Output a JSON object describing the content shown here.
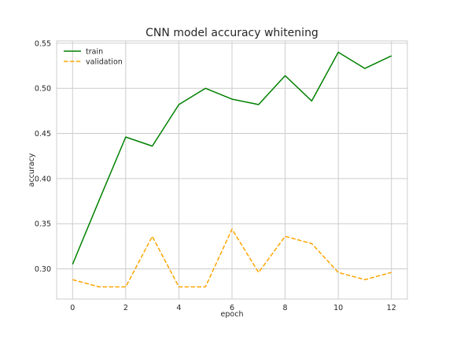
{
  "chart_data": {
    "type": "line",
    "title": "CNN model accuracy whitening",
    "xlabel": "epoch",
    "ylabel": "accuracy",
    "x": [
      0,
      1,
      2,
      3,
      4,
      5,
      6,
      7,
      8,
      9,
      10,
      11,
      12
    ],
    "xlim": [
      -0.6,
      12.6
    ],
    "ylim": [
      0.2665,
      0.5525
    ],
    "xticks": [
      0,
      2,
      4,
      6,
      8,
      10,
      12
    ],
    "xtick_labels": [
      "0",
      "2",
      "4",
      "6",
      "8",
      "10",
      "12"
    ],
    "yticks": [
      0.3,
      0.35,
      0.4,
      0.45,
      0.5,
      0.55
    ],
    "ytick_labels": [
      "0.30",
      "0.35",
      "0.40",
      "0.45",
      "0.50",
      "0.55"
    ],
    "grid": true,
    "legend_position": "top-left",
    "series": [
      {
        "name": "train",
        "color": "#008000",
        "dash": "solid",
        "values": [
          0.305,
          0.376,
          0.446,
          0.436,
          0.482,
          0.5,
          0.488,
          0.482,
          0.514,
          0.486,
          0.54,
          0.522,
          0.536
        ]
      },
      {
        "name": "validation",
        "color": "#ffa500",
        "dash": "dashed",
        "values": [
          0.288,
          0.28,
          0.28,
          0.336,
          0.28,
          0.28,
          0.344,
          0.296,
          0.336,
          0.328,
          0.296,
          0.288,
          0.296
        ]
      }
    ]
  }
}
